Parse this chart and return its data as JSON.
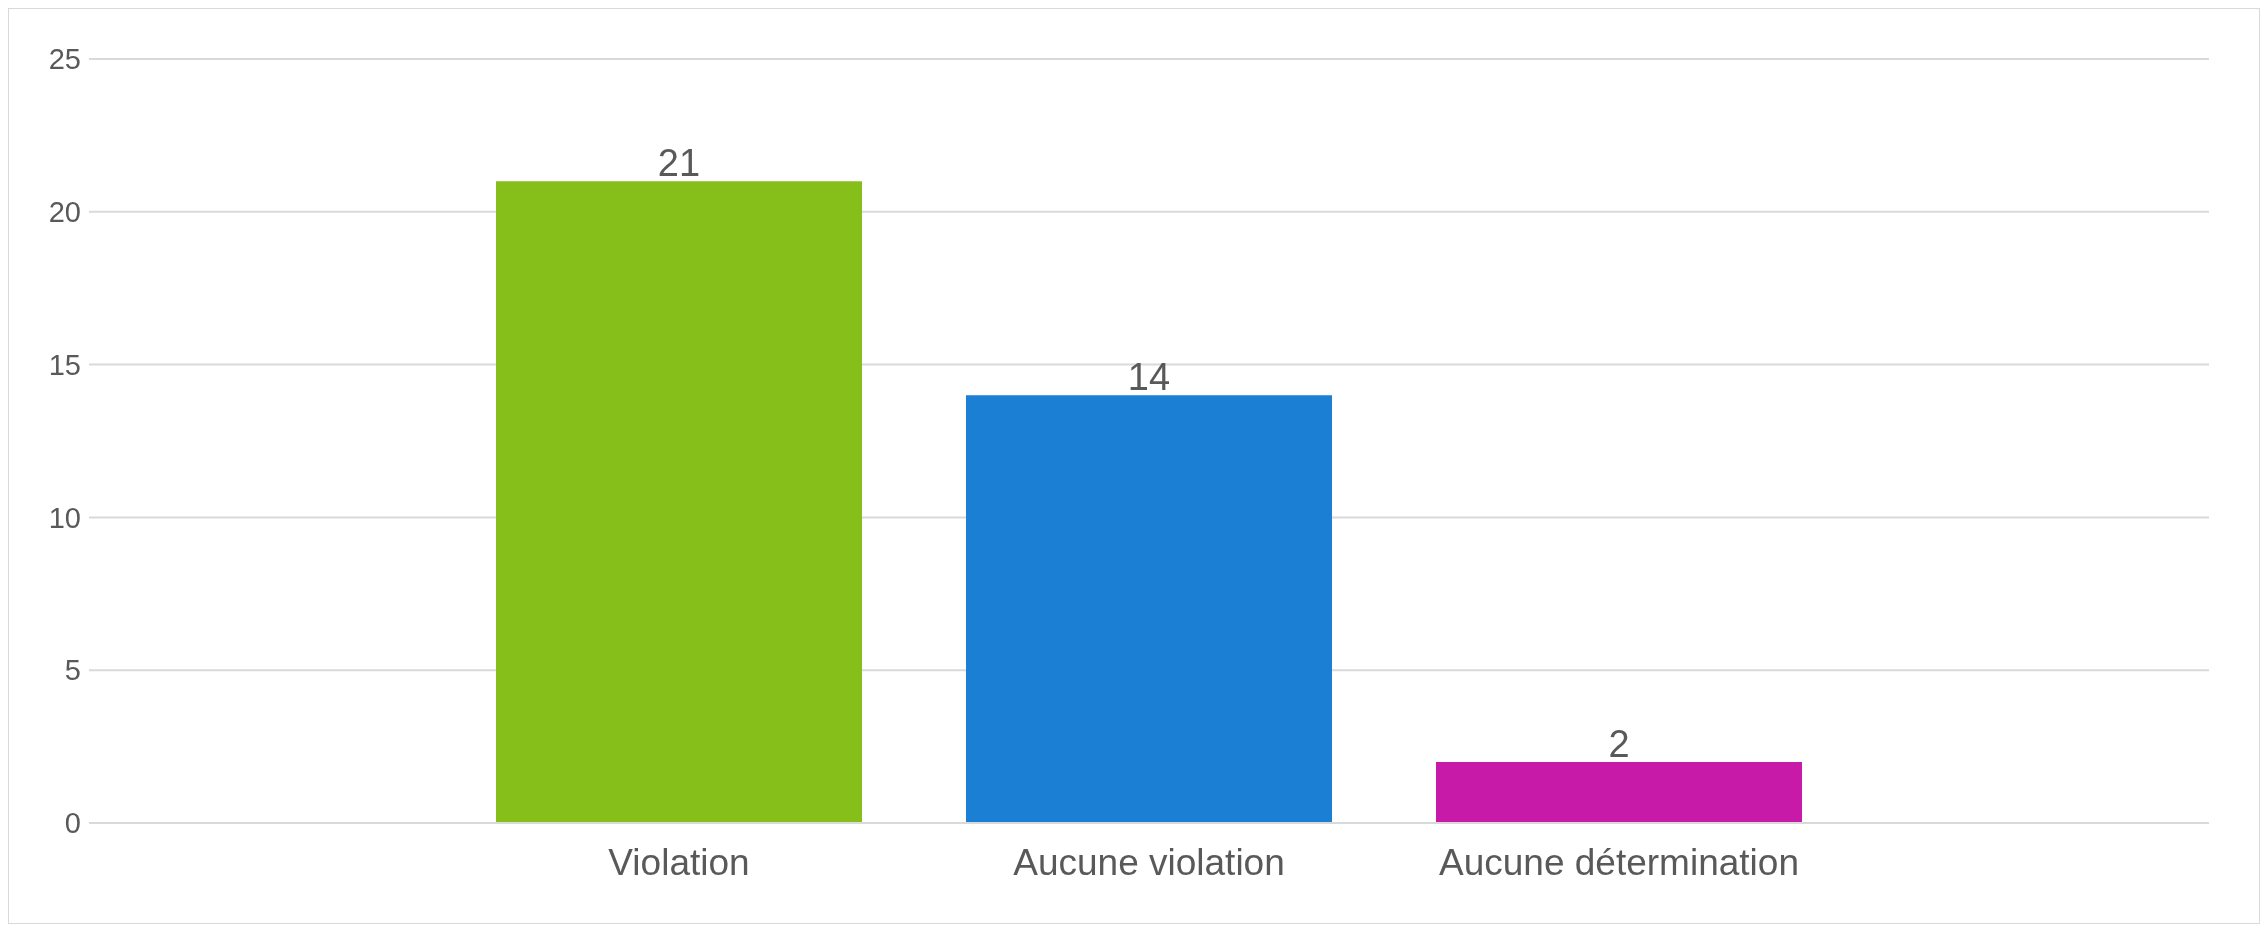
{
  "chart_data": {
    "type": "bar",
    "categories": [
      "Violation",
      "Aucune violation",
      "Aucune détermination"
    ],
    "values": [
      21,
      14,
      2
    ],
    "colors": [
      "#86bf1a",
      "#1b80d4",
      "#c81aa8"
    ],
    "ylim": [
      0,
      25
    ],
    "yticks": [
      0,
      5,
      10,
      15,
      20,
      25
    ],
    "grid": "y",
    "data_labels": true
  }
}
